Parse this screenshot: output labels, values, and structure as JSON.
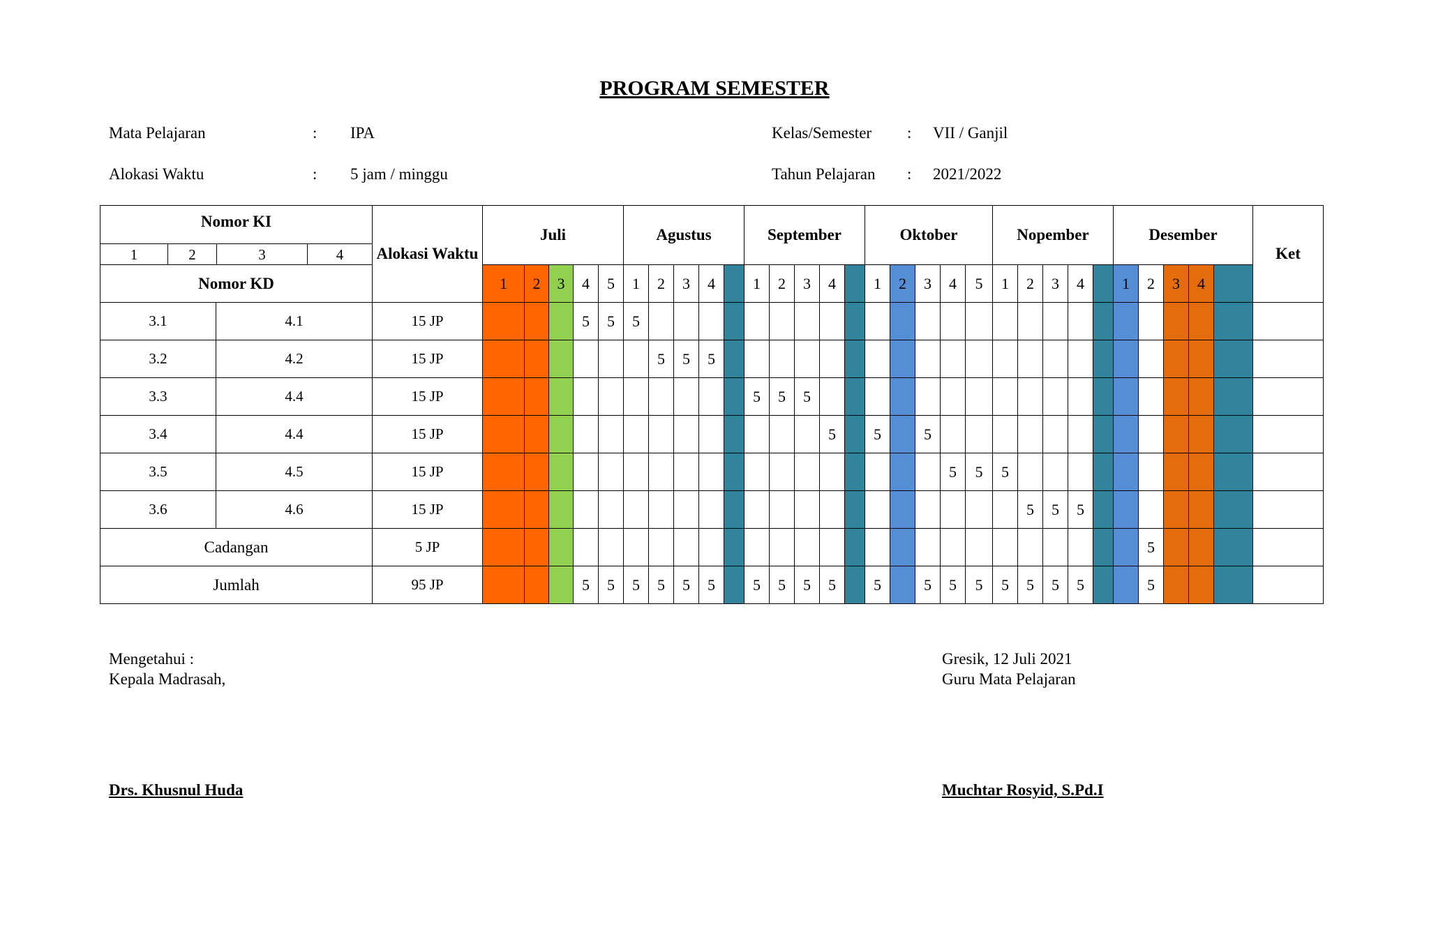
{
  "document": {
    "title": "PROGRAM SEMESTER"
  },
  "info": {
    "mapel_label": "Mata Pelajaran",
    "mapel_value": "IPA",
    "alokasi_label": "Alokasi Waktu",
    "alokasi_value": "5 jam / minggu",
    "kelas_label": "Kelas/Semester",
    "kelas_value": "VII / Ganjil",
    "tahun_label": "Tahun Pelajaran",
    "tahun_value": "2021/2022",
    "colon": ":"
  },
  "table": {
    "nomor_ki": "Nomor KI",
    "ki_numbers": [
      "1",
      "2",
      "3",
      "4"
    ],
    "nomor_kd": "Nomor KD",
    "alokasi_header": "Alokasi Waktu",
    "ket_header": "Ket",
    "colors": {
      "orange": "#ff6600",
      "green": "#92d050",
      "teal": "#31849b",
      "blue": "#558ed5",
      "dark_orange": "#e46c0a"
    },
    "months": [
      {
        "name": "Juli",
        "weeks": [
          "1",
          "2",
          "3",
          "4",
          "5"
        ],
        "fills": [
          "orange",
          "orange",
          "green",
          null,
          null
        ]
      },
      {
        "name": "Agustus",
        "weeks": [
          "1",
          "2",
          "3",
          "4",
          ""
        ],
        "fills": [
          null,
          null,
          null,
          null,
          "teal"
        ]
      },
      {
        "name": "September",
        "weeks": [
          "1",
          "2",
          "3",
          "4",
          ""
        ],
        "fills": [
          null,
          null,
          null,
          null,
          "teal"
        ]
      },
      {
        "name": "Oktober",
        "weeks": [
          "1",
          "2",
          "3",
          "4",
          "5"
        ],
        "fills": [
          null,
          "blue",
          null,
          null,
          null
        ]
      },
      {
        "name": "Nopember",
        "weeks": [
          "1",
          "2",
          "3",
          "4",
          ""
        ],
        "fills": [
          null,
          null,
          null,
          null,
          "teal"
        ]
      },
      {
        "name": "Desember",
        "weeks": [
          "1",
          "2",
          "3",
          "4",
          ""
        ],
        "fills": [
          "blue",
          null,
          "dark_orange",
          "dark_orange",
          "teal"
        ]
      }
    ],
    "rows": [
      {
        "kd3": "3.1",
        "kd4": "4.1",
        "alokasi": "15 JP",
        "cells": [
          "",
          "",
          "",
          "5",
          "5",
          "5",
          "",
          "",
          "",
          "",
          "",
          "",
          "",
          "",
          "",
          "",
          "",
          "",
          "",
          "",
          "",
          "",
          "",
          "",
          "",
          "",
          "",
          "",
          "",
          ""
        ]
      },
      {
        "kd3": "3.2",
        "kd4": "4.2",
        "alokasi": "15 JP",
        "cells": [
          "",
          "",
          "",
          "",
          "",
          "",
          "5",
          "5",
          "5",
          "",
          "",
          "",
          "",
          "",
          "",
          "",
          "",
          "",
          "",
          "",
          "",
          "",
          "",
          "",
          "",
          "",
          "",
          "",
          "",
          ""
        ]
      },
      {
        "kd3": "3.3",
        "kd4": "4.4",
        "alokasi": "15 JP",
        "cells": [
          "",
          "",
          "",
          "",
          "",
          "",
          "",
          "",
          "",
          "",
          "5",
          "5",
          "5",
          "",
          "",
          "",
          "",
          "",
          "",
          "",
          "",
          "",
          "",
          "",
          "",
          "",
          "",
          "",
          "",
          ""
        ]
      },
      {
        "kd3": "3.4",
        "kd4": "4.4",
        "alokasi": "15 JP",
        "cells": [
          "",
          "",
          "",
          "",
          "",
          "",
          "",
          "",
          "",
          "",
          "",
          "",
          "",
          "5",
          "",
          "5",
          "",
          "5",
          "",
          "",
          "",
          "",
          "",
          "",
          "",
          "",
          "",
          "",
          "",
          ""
        ]
      },
      {
        "kd3": "3.5",
        "kd4": "4.5",
        "alokasi": "15 JP",
        "cells": [
          "",
          "",
          "",
          "",
          "",
          "",
          "",
          "",
          "",
          "",
          "",
          "",
          "",
          "",
          "",
          "",
          "",
          "",
          "5",
          "5",
          "5",
          "",
          "",
          "",
          "",
          "",
          "",
          "",
          "",
          ""
        ]
      },
      {
        "kd3": "3.6",
        "kd4": "4.6",
        "alokasi": "15 JP",
        "cells": [
          "",
          "",
          "",
          "",
          "",
          "",
          "",
          "",
          "",
          "",
          "",
          "",
          "",
          "",
          "",
          "",
          "",
          "",
          "",
          "",
          "",
          "5",
          "5",
          "5",
          "",
          "",
          "",
          "",
          "",
          ""
        ]
      },
      {
        "label": "Cadangan",
        "alokasi": "5  JP",
        "cells": [
          "",
          "",
          "",
          "",
          "",
          "",
          "",
          "",
          "",
          "",
          "",
          "",
          "",
          "",
          "",
          "",
          "",
          "",
          "",
          "",
          "",
          "",
          "",
          "",
          "",
          "",
          "5",
          "",
          "",
          ""
        ]
      },
      {
        "label": "Jumlah",
        "alokasi": "95 JP",
        "cells": [
          "",
          "",
          "",
          "5",
          "5",
          "5",
          "5",
          "5",
          "5",
          "",
          "5",
          "5",
          "5",
          "5",
          "",
          "5",
          "",
          "5",
          "5",
          "5",
          "5",
          "5",
          "5",
          "5",
          "",
          "",
          "5",
          "",
          "",
          ""
        ]
      }
    ]
  },
  "signatures": {
    "left_line1": "Mengetahui :",
    "left_line2": "Kepala Madrasah,",
    "left_name": "Drs. Khusnul Huda",
    "right_line1": "Gresik, 12 Juli 2021",
    "right_line2": "Guru Mata Pelajaran",
    "right_name": "Muchtar Rosyid, S.Pd.I"
  }
}
